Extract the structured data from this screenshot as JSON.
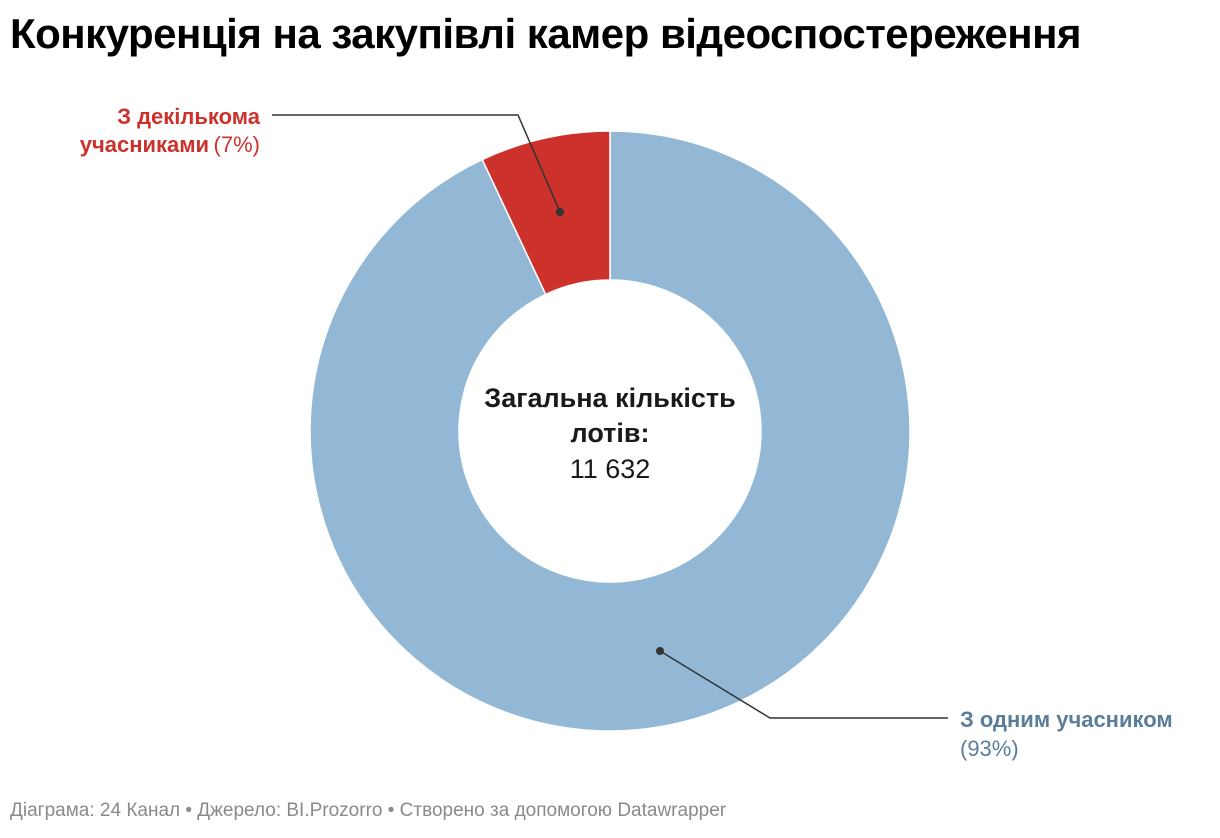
{
  "title": "Конкуренція на закупівлі камер відеоспостереження",
  "chart_data": {
    "type": "pie",
    "variant": "donut",
    "total_label_line1": "Загальна кількість",
    "total_label_line2": "лотів:",
    "total_value": "11 632",
    "slices": [
      {
        "name_line1": "З одним учасником",
        "name_line2": "",
        "percent_label": "(93%)",
        "value": 93,
        "color": "#92b8d5",
        "label_color": "#5a7d9a"
      },
      {
        "name_line1": "З декількома",
        "name_line2": "учасниками",
        "percent_label": "(7%)",
        "value": 7,
        "color": "#cc322b",
        "label_color": "#cc322b"
      }
    ],
    "legend": "none"
  },
  "footer": {
    "source": "Діаграма: 24 Канал • Джерело: BI.Prozorro • Створено за допомогою Datawrapper"
  }
}
